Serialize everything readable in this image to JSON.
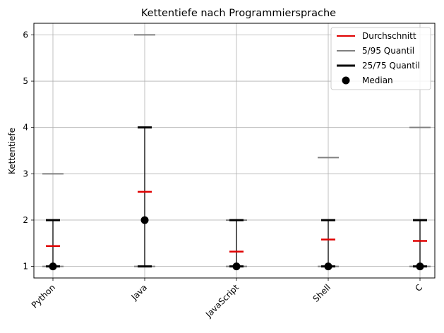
{
  "chart_data": {
    "type": "box-summary",
    "title": "Kettentiefe nach Programmiersprache",
    "xlabel": "",
    "ylabel": "Kettentiefe",
    "categories": [
      "Python",
      "Java",
      "JavaScript",
      "Shell",
      "C"
    ],
    "ylim": [
      0.75,
      6.25
    ],
    "yticks": [
      1,
      2,
      3,
      4,
      5,
      6
    ],
    "grid": true,
    "legend_position": "top-right",
    "series": [
      {
        "name": "Durchschnitt",
        "values": [
          1.44,
          2.61,
          1.32,
          1.58,
          1.55
        ],
        "color": "#e00000"
      },
      {
        "name": "5/95 Quantil",
        "lower": [
          1,
          1,
          1,
          1,
          1
        ],
        "upper": [
          3,
          6,
          2,
          3.35,
          4
        ],
        "color": "#808080"
      },
      {
        "name": "25/75 Quantil",
        "lower": [
          1,
          1,
          1,
          1,
          1
        ],
        "upper": [
          2,
          4,
          2,
          2,
          2
        ],
        "color": "#000000"
      },
      {
        "name": "Median",
        "values": [
          1,
          2,
          1,
          1,
          1
        ],
        "color": "#000000"
      }
    ]
  }
}
